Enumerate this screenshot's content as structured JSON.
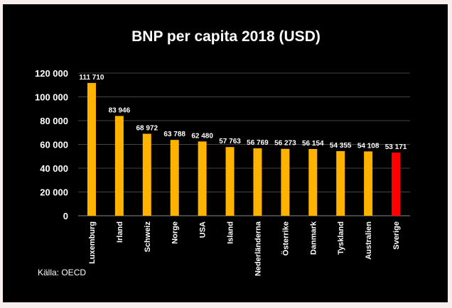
{
  "chart_data": {
    "type": "bar",
    "title": "BNP per capita 2018 (USD)",
    "categories": [
      "Luxemburg",
      "Irland",
      "Schweiz",
      "Norge",
      "USA",
      "Island",
      "Nederländerna",
      "Österrike",
      "Danmark",
      "Tyskland",
      "Australien",
      "Sverige"
    ],
    "values": [
      111710,
      83946,
      68972,
      63788,
      62480,
      57763,
      56769,
      56273,
      56154,
      54355,
      54108,
      53171
    ],
    "data_labels": [
      "111 710",
      "83 946",
      "68 972",
      "63 788",
      "62 480",
      "57 763",
      "56 769",
      "56 273",
      "56 154",
      "54 355",
      "54 108",
      "53 171"
    ],
    "yticks": [
      0,
      20000,
      40000,
      60000,
      80000,
      100000,
      120000
    ],
    "ytick_labels": [
      "0",
      "20 000",
      "40 000",
      "60 000",
      "80 000",
      "100 000",
      "120 000"
    ],
    "ylim": [
      0,
      120000
    ],
    "grid": true,
    "xlabel": "",
    "ylabel": "",
    "colors": {
      "bar": "#ffb300",
      "highlight": "#ff0000",
      "background": "#000000"
    },
    "highlight_category": "Sverige",
    "source": "Källa: OECD"
  }
}
